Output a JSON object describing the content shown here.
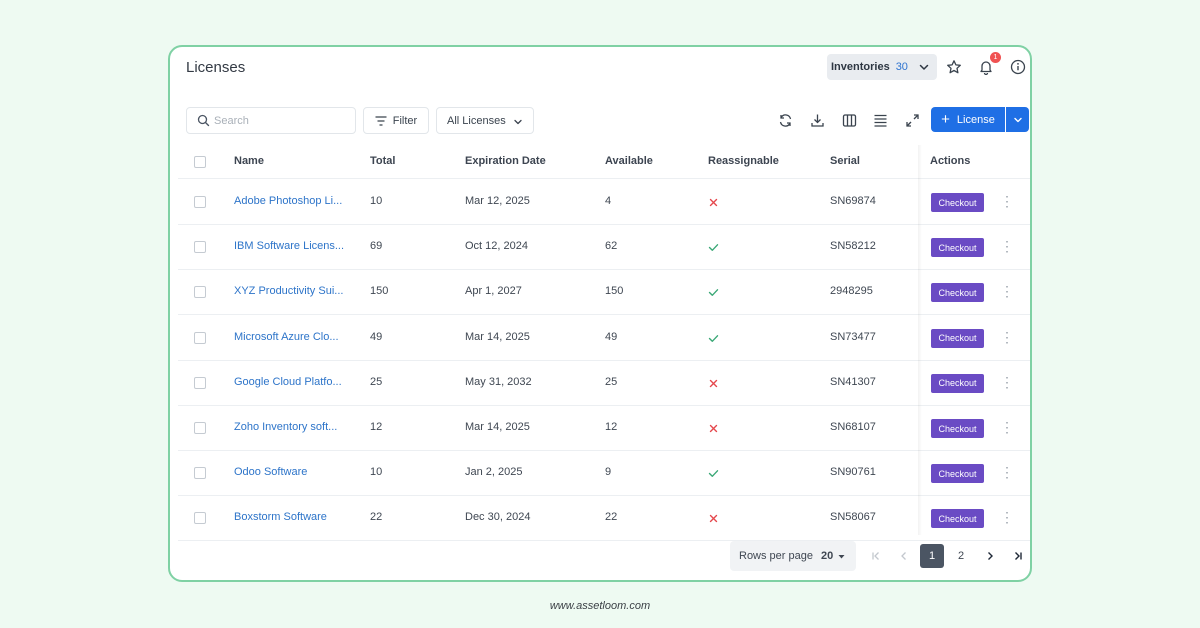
{
  "header": {
    "title": "Licenses",
    "inventory_label": "Inventories",
    "inventory_count": "30",
    "notification_count": "1"
  },
  "toolbar": {
    "search_placeholder": "Search",
    "filter_label": "Filter",
    "scope_select": "All Licenses",
    "add_button_label": "License",
    "icons": [
      "refresh-icon",
      "download-icon",
      "columns-icon",
      "density-icon",
      "fullscreen-icon"
    ]
  },
  "table": {
    "columns": [
      "Name",
      "Total",
      "Expiration Date",
      "Available",
      "Reassignable",
      "Serial",
      "Actions"
    ],
    "action_label": "Checkout",
    "rows": [
      {
        "name": "Adobe Photoshop Li...",
        "total": "10",
        "expiration": "Mar 12, 2025",
        "available": "4",
        "reassignable": false,
        "serial": "SN69874"
      },
      {
        "name": "IBM Software Licens...",
        "total": "69",
        "expiration": "Oct 12, 2024",
        "available": "62",
        "reassignable": true,
        "serial": "SN58212"
      },
      {
        "name": "XYZ Productivity Sui...",
        "total": "150",
        "expiration": "Apr 1, 2027",
        "available": "150",
        "reassignable": true,
        "serial": "2948295"
      },
      {
        "name": "Microsoft Azure Clo...",
        "total": "49",
        "expiration": "Mar 14, 2025",
        "available": "49",
        "reassignable": true,
        "serial": "SN73477"
      },
      {
        "name": "Google Cloud Platfo...",
        "total": "25",
        "expiration": "May 31, 2032",
        "available": "25",
        "reassignable": false,
        "serial": "SN41307"
      },
      {
        "name": "Zoho Inventory soft...",
        "total": "12",
        "expiration": "Mar 14, 2025",
        "available": "12",
        "reassignable": false,
        "serial": "SN68107"
      },
      {
        "name": "Odoo Software",
        "total": "10",
        "expiration": "Jan 2, 2025",
        "available": "9",
        "reassignable": true,
        "serial": "SN90761"
      },
      {
        "name": "Boxstorm Software",
        "total": "22",
        "expiration": "Dec 30, 2024",
        "available": "22",
        "reassignable": false,
        "serial": "SN58067"
      }
    ]
  },
  "pagination": {
    "rows_per_page_label": "Rows per page",
    "rows_per_page_value": "20",
    "pages": [
      "1",
      "2"
    ],
    "current_page": "1"
  },
  "footer": {
    "url": "www.assetloom.com"
  },
  "colors": {
    "accent": "#1f6fe5",
    "checkout": "#6a4bc4",
    "link": "#2d74c9",
    "success": "#3aa876",
    "danger": "#e5484d",
    "frame": "#7fd1a4"
  }
}
